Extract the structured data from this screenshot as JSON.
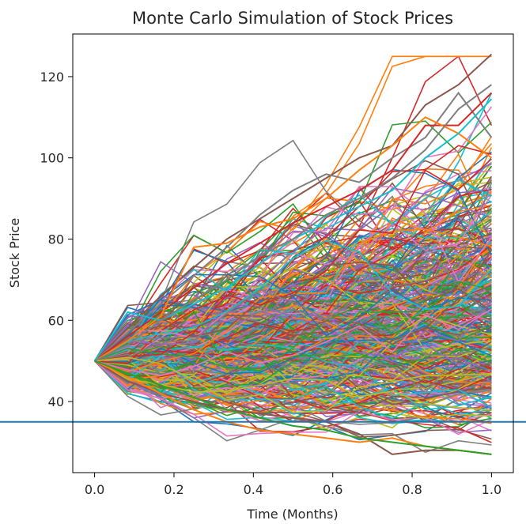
{
  "chart_data": {
    "type": "line",
    "title": "Monte Carlo Simulation of Stock Prices",
    "xlabel": "Time (Months)",
    "ylabel": "Stock Price",
    "xlim": [
      -0.055,
      1.055
    ],
    "ylim": [
      22.5,
      130.5
    ],
    "x_ticks": [
      0.0,
      0.2,
      0.4,
      0.6,
      0.8,
      1.0
    ],
    "x_tick_labels": [
      "0.0",
      "0.2",
      "0.4",
      "0.6",
      "0.8",
      "1.0"
    ],
    "y_ticks": [
      40,
      60,
      80,
      100,
      120
    ],
    "y_tick_labels": [
      "40",
      "60",
      "80",
      "100",
      "120"
    ],
    "x": [
      0,
      0.0833,
      0.1667,
      0.25,
      0.3333,
      0.4167,
      0.5,
      0.5833,
      0.6667,
      0.75,
      0.8333,
      0.9167,
      1.0
    ],
    "start_value": 50,
    "path_count": 500,
    "final_range": [
      26,
      125
    ],
    "reference_line": {
      "y": 35,
      "color": "#1f77b4"
    },
    "highlighted_paths": [
      {
        "color": "#8c564b",
        "values": [
          50,
          58,
          66,
          73,
          80,
          85,
          90,
          95,
          100,
          103,
          113,
          118,
          125.5
        ]
      },
      {
        "color": "#7f7f7f",
        "values": [
          50,
          57,
          64,
          71,
          78,
          86,
          92,
          96,
          94,
          100,
          105,
          116,
          105
        ]
      },
      {
        "color": "#d62728",
        "values": [
          50,
          56,
          62,
          68,
          74,
          79,
          84,
          88,
          92,
          97,
          108,
          108,
          116
        ]
      },
      {
        "color": "#ff7f0e",
        "values": [
          50,
          55,
          61,
          78,
          79,
          83,
          85,
          90,
          97,
          103,
          110,
          106,
          100
        ]
      },
      {
        "color": "#17becf",
        "values": [
          50,
          62,
          60,
          64,
          68,
          74,
          80,
          84,
          88,
          92,
          100,
          106,
          114.5
        ]
      },
      {
        "color": "#7f7f7f",
        "values": [
          50,
          54,
          60,
          65,
          70,
          76,
          80,
          86,
          90,
          95,
          102,
          112,
          118
        ]
      },
      {
        "color": "#8c564b",
        "values": [
          50,
          45,
          42,
          40,
          38,
          37,
          36,
          35,
          32,
          27,
          28,
          28,
          27
        ]
      },
      {
        "color": "#ff7f0e",
        "values": [
          50,
          46,
          42,
          38,
          35,
          33,
          32,
          31,
          30,
          31,
          29,
          28,
          27
        ]
      },
      {
        "color": "#2ca02c",
        "values": [
          50,
          47,
          44,
          41,
          38,
          36,
          34,
          33,
          31,
          30,
          29,
          28,
          27
        ]
      }
    ],
    "colors": [
      "#1f77b4",
      "#ff7f0e",
      "#2ca02c",
      "#d62728",
      "#9467bd",
      "#8c564b",
      "#e377c2",
      "#7f7f7f",
      "#bcbd22",
      "#17becf"
    ]
  }
}
